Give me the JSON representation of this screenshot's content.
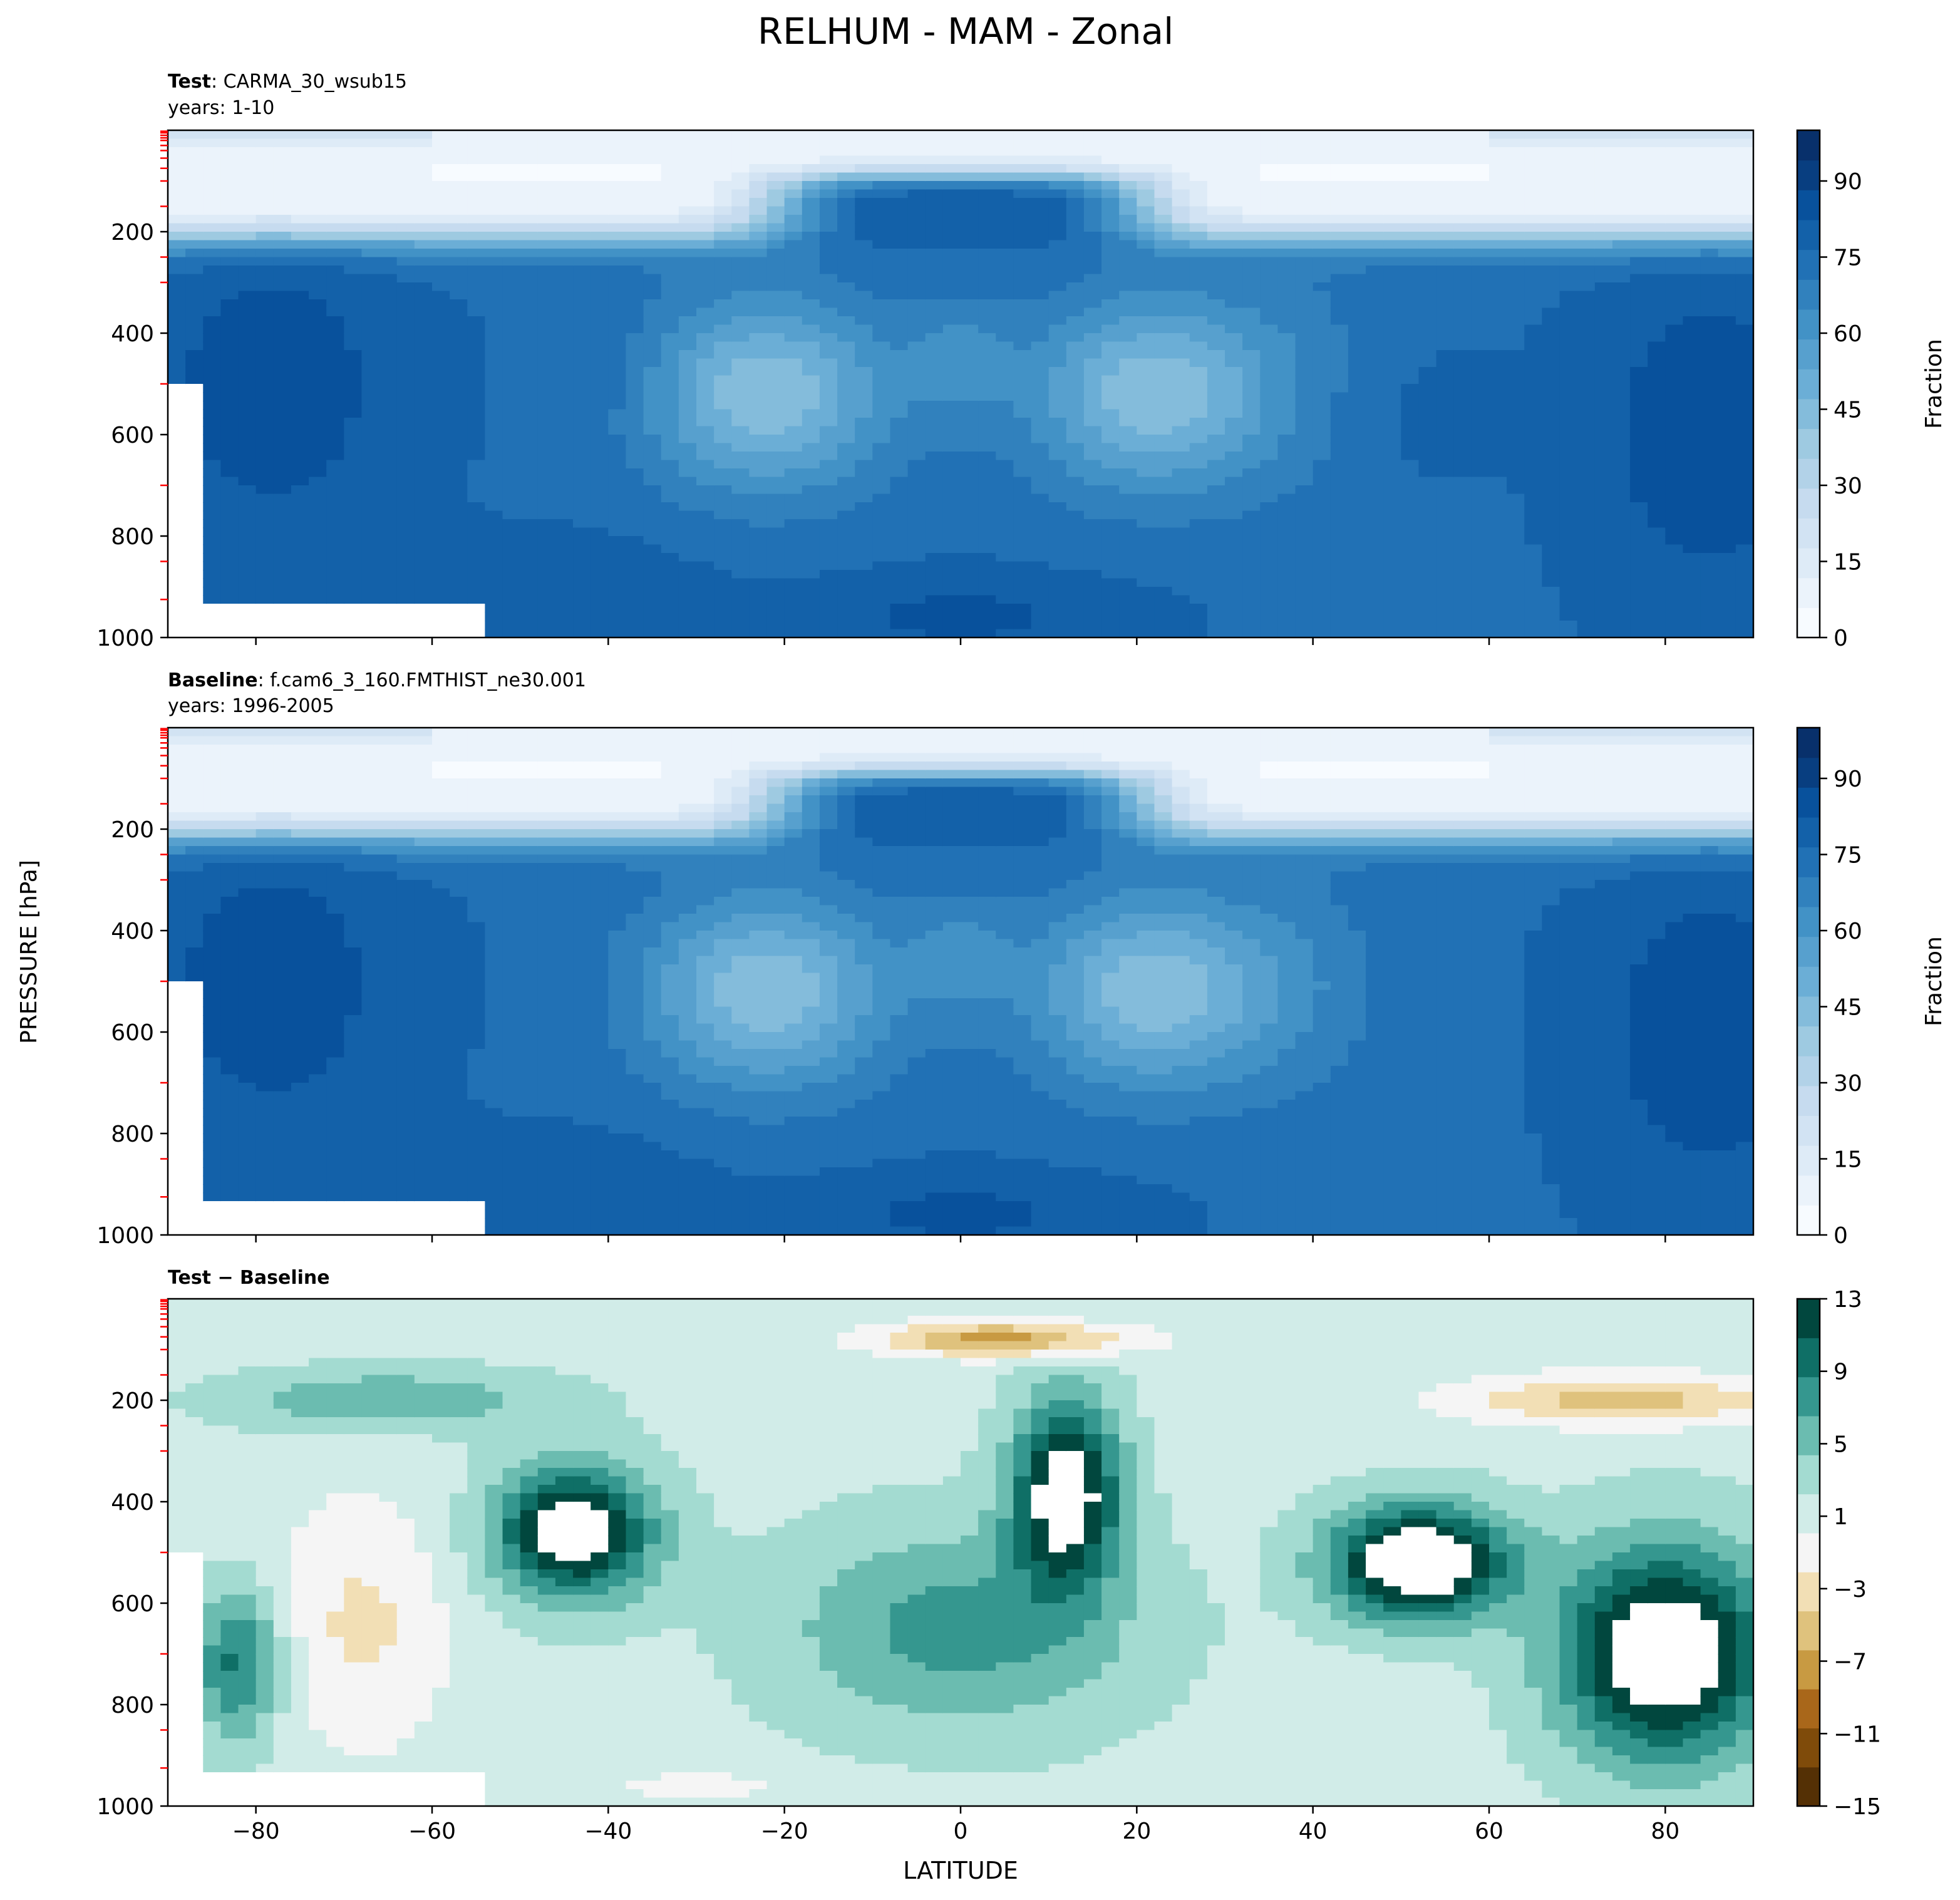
{
  "figure": {
    "title": "RELHUM - MAM - Zonal",
    "ylabel": "PRESSURE [hPa]",
    "xlabel": "LATITUDE"
  },
  "colors": {
    "blues": [
      "#f7fbff",
      "#ebf3fb",
      "#deebf7",
      "#d2e3f3",
      "#c6dbef",
      "#b2d2e8",
      "#9ecae1",
      "#84bcdb",
      "#6baed6",
      "#57a0ce",
      "#4292c6",
      "#3181bd",
      "#2171b5",
      "#1361a9",
      "#08519c",
      "#083e80",
      "#08306b"
    ],
    "diverging": [
      "#543005",
      "#7f4b0a",
      "#a9671a",
      "#c89a42",
      "#dfc27d",
      "#f2dfb5",
      "#f5f5f5",
      "#d1ece8",
      "#a3dbd1",
      "#6bbcb0",
      "#35978f",
      "#0f6f66",
      "#01473e"
    ],
    "mask": "#ffffff",
    "redTick": "#ff0000"
  },
  "chart_data": [
    {
      "type": "heatmap",
      "panel": "test",
      "label_bold": "Test",
      "label_rest": ": CARMA_30_wsub15",
      "years": "years: 1-10",
      "colorbar_label": "Fraction",
      "colorbar_ticks": [
        "0",
        "15",
        "30",
        "45",
        "60",
        "75",
        "90"
      ],
      "colorbar_range": [
        0,
        100
      ],
      "xlim": [
        -90,
        90
      ],
      "ylim": [
        1000,
        0
      ],
      "yticks": [
        "200",
        "400",
        "600",
        "800",
        "1000"
      ],
      "xticks": [
        "−80",
        "−60",
        "−40",
        "−20",
        "0",
        "20",
        "40",
        "60",
        "80"
      ],
      "description_values": {
        "upper_troposphere_max": 90,
        "subtropical_min": 35,
        "tropopause_min": 2
      }
    },
    {
      "type": "heatmap",
      "panel": "baseline",
      "label_bold": "Baseline",
      "label_rest": ": f.cam6_3_160.FMTHIST_ne30.001",
      "years": "years: 1996-2005",
      "colorbar_label": "Fraction",
      "colorbar_ticks": [
        "0",
        "15",
        "30",
        "45",
        "60",
        "75",
        "90"
      ],
      "colorbar_range": [
        0,
        100
      ],
      "xlim": [
        -90,
        90
      ],
      "ylim": [
        1000,
        0
      ],
      "yticks": [
        "200",
        "400",
        "600",
        "800",
        "1000"
      ],
      "xticks": [
        "−80",
        "−60",
        "−40",
        "−20",
        "0",
        "20",
        "40",
        "60",
        "80"
      ]
    },
    {
      "type": "heatmap",
      "panel": "difference",
      "label_bold": "Test − Baseline",
      "colorbar_ticks": [
        "13",
        "9",
        "5",
        "1",
        "−3",
        "−7",
        "−11",
        "−15"
      ],
      "colorbar_range": [
        -15,
        13
      ],
      "xlim": [
        -90,
        90
      ],
      "ylim": [
        1000,
        0
      ],
      "yticks": [
        "200",
        "400",
        "600",
        "800",
        "1000"
      ],
      "xticks": [
        "−80",
        "−60",
        "−40",
        "−20",
        "0",
        "20",
        "40",
        "60",
        "80"
      ]
    }
  ]
}
